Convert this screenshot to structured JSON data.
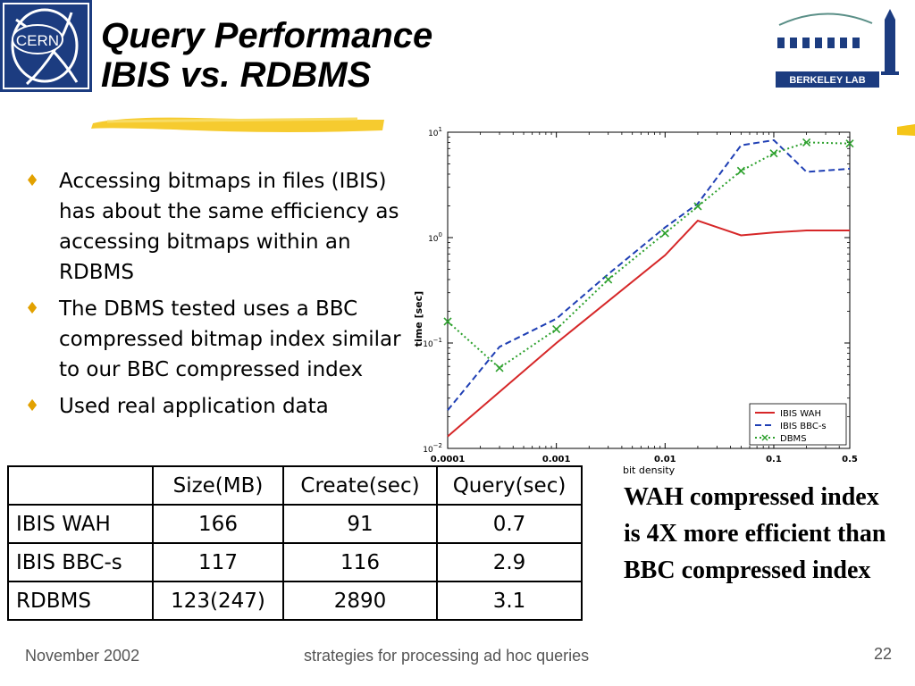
{
  "slide": {
    "title_line1": "Query Performance",
    "title_line2": "IBIS vs. RDBMS",
    "logos": {
      "left": "CERN",
      "right": "BERKELEY LAB"
    },
    "bullets": [
      "Accessing bitmaps in files (IBIS) has about the same efficiency as accessing bitmaps within an RDBMS",
      "The DBMS tested uses a BBC compressed bitmap index similar to our BBC compressed index",
      "Used real application data"
    ],
    "callout": "WAH compressed index is 4X more efficient than BBC compressed index",
    "footer": {
      "date": "November 2002",
      "subject": "strategies for processing ad hoc queries",
      "page": "22"
    }
  },
  "table": {
    "headers": [
      "",
      "Size(MB)",
      "Create(sec)",
      "Query(sec)"
    ],
    "rows": [
      [
        "IBIS WAH",
        "166",
        "91",
        "0.7"
      ],
      [
        "IBIS BBC-s",
        "117",
        "116",
        "2.9"
      ],
      [
        "RDBMS",
        "123(247)",
        "2890",
        "3.1"
      ]
    ]
  },
  "chart_data": {
    "type": "line",
    "xlabel": "bit density",
    "ylabel": "time [sec]",
    "xscale": "log",
    "yscale": "log",
    "xlim": [
      0.0001,
      0.5
    ],
    "ylim": [
      0.01,
      10
    ],
    "xticks": [
      {
        "value": 0.0001,
        "label": "0.0001"
      },
      {
        "value": 0.001,
        "label": "0.001"
      },
      {
        "value": 0.01,
        "label": "0.01"
      },
      {
        "value": 0.1,
        "label": "0.1"
      },
      {
        "value": 0.5,
        "label": "0.5"
      }
    ],
    "yticks": [
      {
        "value": 0.01,
        "base": "10",
        "exp": "−2"
      },
      {
        "value": 0.1,
        "base": "10",
        "exp": "−1"
      },
      {
        "value": 1,
        "base": "10",
        "exp": "0"
      },
      {
        "value": 10,
        "base": "10",
        "exp": "1"
      }
    ],
    "legend_position": "bottom-right",
    "series": [
      {
        "name": "IBIS WAH",
        "color": "#d62728",
        "style": "solid",
        "marker": "none",
        "x": [
          0.0001,
          0.001,
          0.01,
          0.02,
          0.05,
          0.1,
          0.2,
          0.5
        ],
        "y": [
          0.013,
          0.1,
          0.68,
          1.45,
          1.05,
          1.12,
          1.17,
          1.17
        ]
      },
      {
        "name": "IBIS BBC-s",
        "color": "#1f3fb4",
        "style": "dashed",
        "marker": "none",
        "x": [
          0.0001,
          0.0003,
          0.001,
          0.003,
          0.01,
          0.02,
          0.05,
          0.1,
          0.2,
          0.5
        ],
        "y": [
          0.023,
          0.092,
          0.17,
          0.45,
          1.25,
          2.1,
          7.5,
          8.4,
          4.2,
          4.5
        ]
      },
      {
        "name": "DBMS",
        "color": "#2ca02c",
        "style": "dotted",
        "marker": "x",
        "x": [
          0.0001,
          0.0003,
          0.001,
          0.003,
          0.01,
          0.02,
          0.05,
          0.1,
          0.2,
          0.5
        ],
        "y": [
          0.16,
          0.058,
          0.135,
          0.4,
          1.1,
          1.98,
          4.3,
          6.3,
          8.0,
          7.8
        ]
      }
    ]
  }
}
